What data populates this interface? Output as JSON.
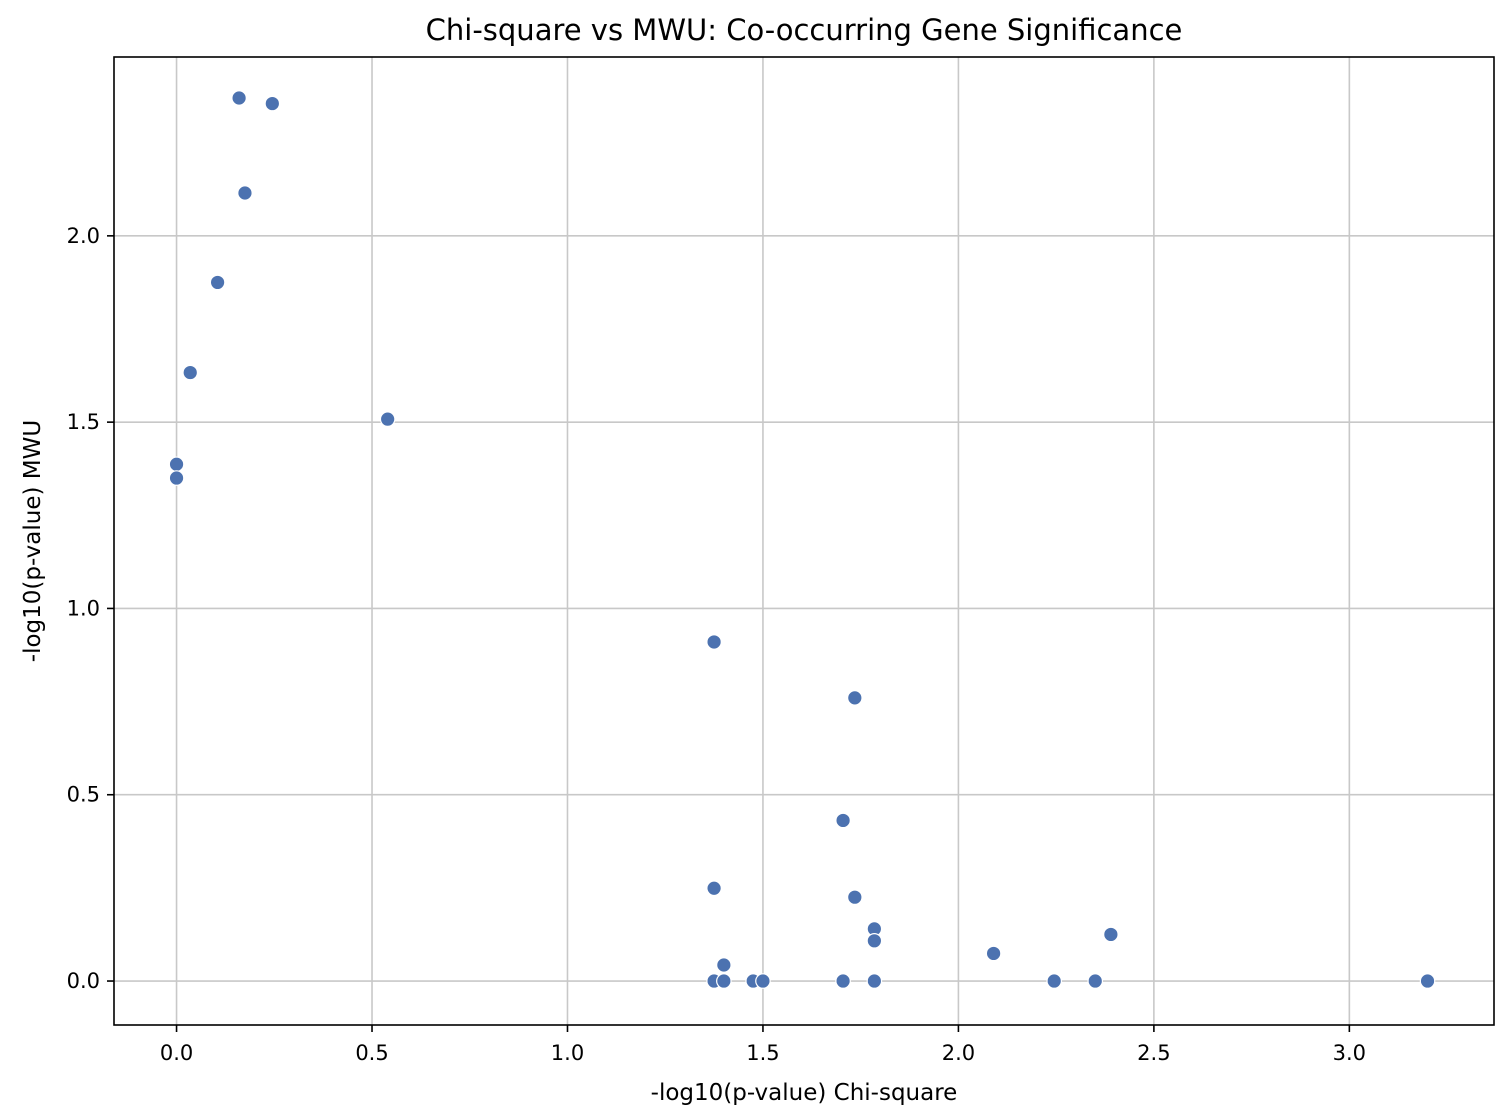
{
  "chart_data": {
    "type": "scatter",
    "title": "Chi-square vs MWU: Co-occurring Gene Significance",
    "xlabel": "-log10(p-value) Chi-square",
    "ylabel": "-log10(p-value) MWU",
    "xlim": [
      -0.16,
      3.37
    ],
    "ylim": [
      -0.118,
      2.48
    ],
    "xticks": [
      0.0,
      0.5,
      1.0,
      1.5,
      2.0,
      2.5,
      3.0
    ],
    "xtick_labels": [
      "0.0",
      "0.5",
      "1.0",
      "1.5",
      "2.0",
      "2.5",
      "3.0"
    ],
    "yticks": [
      0.0,
      0.5,
      1.0,
      1.5,
      2.0
    ],
    "ytick_labels": [
      "0.0",
      "0.5",
      "1.0",
      "1.5",
      "2.0"
    ],
    "grid": true,
    "point_color": "#4c72b0",
    "series": [
      {
        "points": [
          {
            "x": 0.16,
            "y": 2.37
          },
          {
            "x": 0.245,
            "y": 2.355
          },
          {
            "x": 0.175,
            "y": 2.115
          },
          {
            "x": 0.105,
            "y": 1.875
          },
          {
            "x": 0.035,
            "y": 1.633
          },
          {
            "x": 0.54,
            "y": 1.508
          },
          {
            "x": 0.0,
            "y": 1.387
          },
          {
            "x": 0.0,
            "y": 1.35
          },
          {
            "x": 1.375,
            "y": 0.91
          },
          {
            "x": 1.735,
            "y": 0.76
          },
          {
            "x": 1.705,
            "y": 0.431
          },
          {
            "x": 1.375,
            "y": 0.249
          },
          {
            "x": 1.735,
            "y": 0.225
          },
          {
            "x": 1.785,
            "y": 0.14
          },
          {
            "x": 1.785,
            "y": 0.108
          },
          {
            "x": 2.39,
            "y": 0.125
          },
          {
            "x": 2.09,
            "y": 0.074
          },
          {
            "x": 1.4,
            "y": 0.043
          },
          {
            "x": 1.375,
            "y": 0.0
          },
          {
            "x": 1.4,
            "y": 0.0
          },
          {
            "x": 1.475,
            "y": 0.0
          },
          {
            "x": 1.5,
            "y": 0.0
          },
          {
            "x": 1.705,
            "y": 0.0
          },
          {
            "x": 1.785,
            "y": 0.0
          },
          {
            "x": 2.245,
            "y": 0.0
          },
          {
            "x": 2.35,
            "y": 0.0
          },
          {
            "x": 3.2,
            "y": 0.0
          }
        ]
      }
    ]
  }
}
